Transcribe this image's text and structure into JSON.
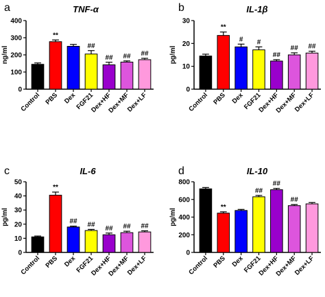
{
  "figure": {
    "panels": [
      "a",
      "b",
      "c",
      "d"
    ]
  },
  "colors": {
    "Control": "#000000",
    "PBS": "#ff0000",
    "Dex": "#0000ff",
    "FGF21": "#ffff00",
    "Dex+HF": "#9900cc",
    "Dex+MF": "#dd55dd",
    "Dex+LF": "#ff99dd"
  },
  "chart_data": [
    {
      "type": "bar",
      "panel_letter": "a",
      "title": "TNF-α",
      "ylabel": "ng/ml",
      "xlabel": "",
      "ylim": [
        0,
        400
      ],
      "yticks": [
        0,
        100,
        200,
        300,
        400
      ],
      "categories": [
        "Control",
        "PBS",
        "Dex",
        "FGF21",
        "Dex+HF",
        "Dex+MF",
        "Dex+LF"
      ],
      "values": [
        145,
        277,
        250,
        205,
        142,
        158,
        172
      ],
      "errors": [
        8,
        10,
        11,
        20,
        15,
        7,
        8
      ],
      "annotations": [
        "",
        "**",
        "",
        "##",
        "##",
        "##",
        "##"
      ]
    },
    {
      "type": "bar",
      "panel_letter": "b",
      "title": "IL-1β",
      "ylabel": "pg/ml",
      "xlabel": "",
      "ylim": [
        0,
        30
      ],
      "yticks": [
        0,
        10,
        20,
        30
      ],
      "categories": [
        "Control",
        "PBS",
        "Dex",
        "FGF21",
        "Dex+HF",
        "Dex+MF",
        "Dex+LF"
      ],
      "values": [
        14.5,
        23.5,
        18.5,
        17.2,
        12.3,
        15,
        15.8
      ],
      "errors": [
        0.8,
        1.5,
        1.2,
        1.3,
        0.6,
        0.9,
        0.8
      ],
      "annotations": [
        "",
        "**",
        "#",
        "#",
        "##",
        "##",
        "##"
      ]
    },
    {
      "type": "bar",
      "panel_letter": "c",
      "title": "IL-6",
      "ylabel": "pg/ml",
      "xlabel": "",
      "ylim": [
        0,
        50
      ],
      "yticks": [
        0,
        10,
        20,
        30,
        40,
        50
      ],
      "categories": [
        "Control",
        "PBS",
        "Dex",
        "FGF21",
        "Dex+HF",
        "Dex+MF",
        "Dex+LF"
      ],
      "values": [
        11,
        40.5,
        18,
        15.5,
        12.5,
        14,
        14.5
      ],
      "errors": [
        0.6,
        2.2,
        0.6,
        0.8,
        1.2,
        1.0,
        0.8
      ],
      "annotations": [
        "",
        "**",
        "##",
        "##",
        "##",
        "##",
        "##"
      ]
    },
    {
      "type": "bar",
      "panel_letter": "d",
      "title": "IL-10",
      "ylabel": "pg/ml",
      "xlabel": "",
      "ylim": [
        0,
        800
      ],
      "yticks": [
        0,
        200,
        400,
        600,
        800
      ],
      "categories": [
        "Control",
        "PBS",
        "Dex",
        "FGF21",
        "Dex+HF",
        "Dex+MF",
        "Dex+LF"
      ],
      "values": [
        720,
        445,
        475,
        630,
        710,
        530,
        550
      ],
      "errors": [
        15,
        15,
        12,
        15,
        15,
        12,
        15
      ],
      "annotations": [
        "",
        "**",
        "",
        "##",
        "##",
        "##",
        ""
      ]
    }
  ]
}
